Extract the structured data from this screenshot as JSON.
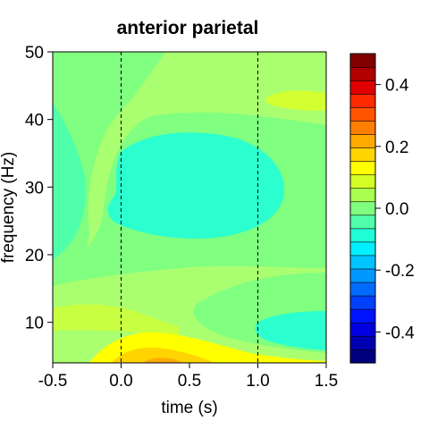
{
  "chart_data": {
    "type": "heatmap",
    "title": "anterior parietal",
    "xlabel": "time (s)",
    "ylabel": "frequency (Hz)",
    "xlim": [
      -0.5,
      1.5
    ],
    "ylim": [
      4,
      50
    ],
    "x_ticks": [
      "-0.5",
      "0.0",
      "0.5",
      "1.0",
      "1.5"
    ],
    "y_ticks": [
      "10",
      "20",
      "30",
      "40",
      "50"
    ],
    "event_lines_x": [
      0.0,
      1.0
    ],
    "colorbar": {
      "min": -0.5,
      "max": 0.5,
      "tick_labels": [
        "0.4",
        "0.2",
        "0.0",
        "-0.2",
        "-0.4"
      ],
      "colors": [
        "#00007f",
        "#0000b0",
        "#0000e0",
        "#0014ff",
        "#0040ff",
        "#006cff",
        "#0098ff",
        "#00c4ff",
        "#00f0ff",
        "#20ffd8",
        "#50ffaa",
        "#80ff80",
        "#aaff50",
        "#d4ff24",
        "#ffff00",
        "#ffd400",
        "#ffaa00",
        "#ff8000",
        "#ff5500",
        "#ff2a00",
        "#e00000",
        "#b00000",
        "#800000"
      ]
    },
    "regions": [
      {
        "level": 0.0,
        "desc": "background around 0.0"
      },
      {
        "level": -0.1,
        "desc": "negative blob 0.0-0.9 s, 24-37 Hz"
      },
      {
        "level": -0.1,
        "desc": "negative patch 1.1-1.5 s, 7-12 Hz"
      },
      {
        "level": -0.05,
        "desc": "negative wedge before 0 s, 17-42 Hz"
      },
      {
        "level": 0.1,
        "desc": "positive band 0.0-1.5 s, 38-44 Hz"
      },
      {
        "level": 0.25,
        "desc": "positive burst 0.0-0.5 s, 4-6 Hz"
      }
    ]
  }
}
